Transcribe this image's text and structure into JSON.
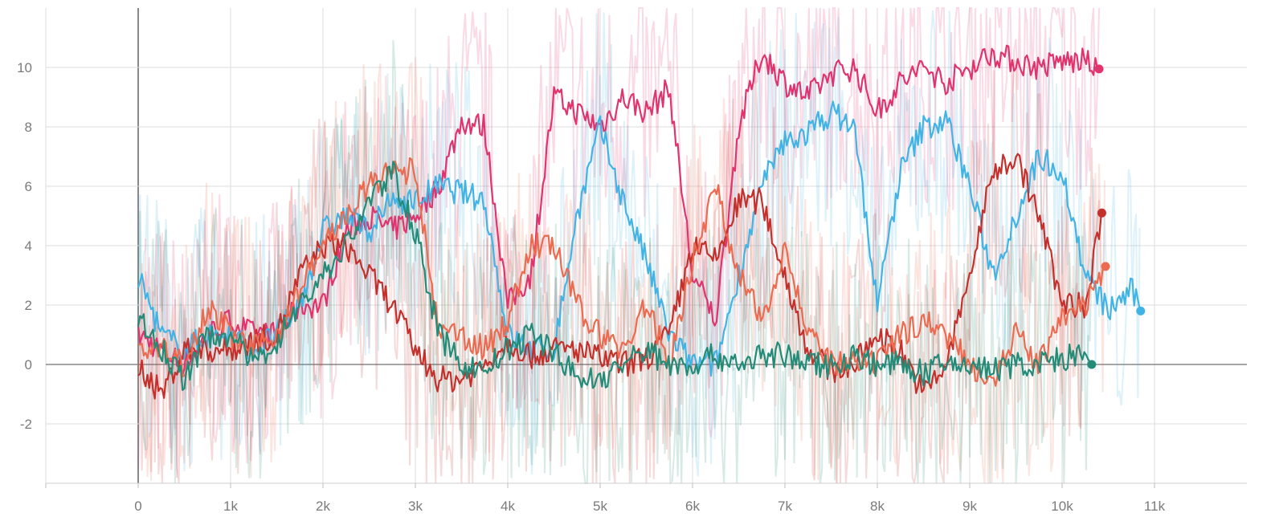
{
  "chart_data": {
    "type": "line",
    "title": "",
    "xlabel": "",
    "ylabel": "",
    "xlim": [
      -1000,
      12000
    ],
    "ylim": [
      -4,
      12
    ],
    "grid": true,
    "legend": "none",
    "x_ticks": [
      0,
      1000,
      2000,
      3000,
      4000,
      5000,
      6000,
      7000,
      8000,
      9000,
      10000,
      11000
    ],
    "x_tick_labels": [
      "0",
      "1k",
      "2k",
      "3k",
      "4k",
      "5k",
      "6k",
      "7k",
      "8k",
      "9k",
      "10k",
      "11k"
    ],
    "y_ticks": [
      -2,
      0,
      2,
      4,
      6,
      8,
      10
    ],
    "y_tick_labels": [
      "-2",
      "0",
      "2",
      "4",
      "6",
      "8",
      "10"
    ],
    "series": [
      {
        "name": "run-pink",
        "color": "#e0346f",
        "x": [
          0,
          250,
          500,
          750,
          1000,
          1250,
          1500,
          1750,
          2000,
          2250,
          2500,
          2750,
          3000,
          3250,
          3500,
          3750,
          4000,
          4250,
          4500,
          4750,
          5000,
          5250,
          5500,
          5750,
          6000,
          6250,
          6500,
          6750,
          7000,
          7250,
          7500,
          7750,
          8000,
          8250,
          8500,
          8750,
          9000,
          9250,
          9500,
          9750,
          10000,
          10250,
          10400
        ],
        "y": [
          1,
          0.5,
          0,
          1,
          1.5,
          1,
          1,
          2,
          2,
          4.5,
          5,
          4.5,
          5,
          6,
          8.2,
          8,
          2,
          3,
          9,
          8.5,
          8,
          9,
          8.5,
          9.3,
          3,
          1.5,
          8,
          10.5,
          9.5,
          9,
          9.8,
          10,
          8.5,
          9.5,
          10,
          9.5,
          10,
          10.5,
          10.2,
          10,
          10.2,
          10.2,
          9.95
        ]
      },
      {
        "name": "run-blue",
        "color": "#42b3e5",
        "x": [
          0,
          250,
          500,
          750,
          1000,
          1250,
          1500,
          1750,
          2000,
          2250,
          2500,
          2750,
          3000,
          3250,
          3500,
          3750,
          4000,
          4250,
          4500,
          4750,
          5000,
          5250,
          5500,
          5750,
          6000,
          6250,
          6500,
          6750,
          7000,
          7250,
          7500,
          7750,
          8000,
          8250,
          8500,
          8750,
          9000,
          9250,
          9500,
          9750,
          10000,
          10250,
          10500,
          10750,
          10850
        ],
        "y": [
          3,
          1,
          0.5,
          1,
          1,
          0.5,
          1,
          2,
          4.5,
          5,
          4.5,
          5.5,
          5.5,
          6,
          5.8,
          5.5,
          1,
          0.5,
          0.5,
          5,
          8,
          5.5,
          3.5,
          1,
          0,
          0,
          3,
          6,
          7.5,
          7.8,
          8.5,
          8,
          2,
          6.5,
          8,
          8.2,
          6,
          3,
          5,
          7,
          6.5,
          3,
          1.8,
          2.5,
          1.8
        ]
      },
      {
        "name": "run-red",
        "color": "#c4302b",
        "x": [
          0,
          250,
          500,
          750,
          1000,
          1250,
          1500,
          1750,
          2000,
          2250,
          2500,
          2750,
          3000,
          3250,
          3500,
          3750,
          4000,
          4250,
          4500,
          4750,
          5000,
          5250,
          5500,
          5750,
          6000,
          6250,
          6500,
          6750,
          7000,
          7250,
          7500,
          7750,
          8000,
          8250,
          8500,
          8750,
          9000,
          9250,
          9500,
          9750,
          10000,
          10250,
          10430
        ],
        "y": [
          0,
          -1,
          0.5,
          0.5,
          0.5,
          0.8,
          1,
          3,
          4,
          4,
          3,
          2,
          0.5,
          -0.5,
          -0.5,
          0,
          0.8,
          0.3,
          0.5,
          0.5,
          0.2,
          0,
          0.2,
          1,
          4,
          3.5,
          5.5,
          5.5,
          3,
          0.5,
          -0.2,
          0,
          1,
          0.5,
          -1,
          0,
          3,
          6.5,
          7,
          5,
          2,
          2,
          5.1
        ]
      },
      {
        "name": "run-orange",
        "color": "#ec6a4f",
        "x": [
          0,
          250,
          500,
          750,
          1000,
          1250,
          1500,
          1750,
          2000,
          2250,
          2500,
          2750,
          3000,
          3250,
          3500,
          3750,
          4000,
          4250,
          4500,
          4750,
          5000,
          5250,
          5500,
          5750,
          6000,
          6250,
          6500,
          6750,
          7000,
          7250,
          7500,
          7750,
          8000,
          8250,
          8500,
          8750,
          9000,
          9250,
          9500,
          9750,
          10000,
          10250,
          10470
        ],
        "y": [
          0.5,
          0.5,
          0,
          2,
          1,
          0.5,
          1,
          2.5,
          4,
          5,
          6,
          6.5,
          6.5,
          1,
          1,
          0.5,
          1.5,
          4,
          4,
          2,
          1,
          0.5,
          2,
          0,
          3.5,
          6,
          3,
          1.5,
          4,
          1,
          0,
          0,
          0,
          1,
          1.5,
          1,
          0,
          -0.5,
          1,
          0,
          1.5,
          2,
          3.3
        ]
      },
      {
        "name": "run-teal",
        "color": "#238b77",
        "x": [
          0,
          250,
          500,
          750,
          1000,
          1250,
          1500,
          1750,
          2000,
          2250,
          2500,
          2750,
          3000,
          3250,
          3500,
          3750,
          4000,
          4250,
          4500,
          4750,
          5000,
          5250,
          5500,
          5750,
          6000,
          6250,
          6500,
          6750,
          7000,
          7250,
          7500,
          7750,
          8000,
          8250,
          8500,
          8750,
          9000,
          9250,
          9500,
          9750,
          10000,
          10250,
          10320
        ],
        "y": [
          1.5,
          0.5,
          -0.5,
          1,
          1,
          0,
          0.8,
          2,
          3,
          4,
          5.5,
          6.5,
          4.5,
          1,
          0,
          -0.2,
          0.5,
          1,
          0.5,
          -0.5,
          -0.5,
          0,
          0.5,
          0,
          0,
          0.3,
          0,
          0.3,
          0.3,
          0,
          0,
          0.3,
          0,
          0,
          -0.3,
          0,
          0,
          -0.2,
          0,
          0,
          0.2,
          0.3,
          0
        ]
      }
    ]
  }
}
